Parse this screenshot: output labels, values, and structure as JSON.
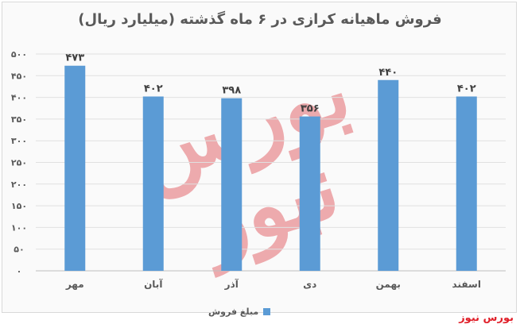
{
  "title": "فروش ماهیانه کرازی در ۶ ماه گذشته (میلیارد ریال)",
  "legend": {
    "label": "مبلغ فروش",
    "color": "#5b9bd5"
  },
  "footer": "بورس نیوز",
  "watermark_text": "بورس نیوز",
  "chart_data": {
    "type": "bar",
    "categories": [
      "مهر",
      "آبان",
      "آذر",
      "دی",
      "بهمن",
      "اسفند"
    ],
    "series": [
      {
        "name": "مبلغ فروش",
        "values": [
          473,
          402,
          398,
          356,
          440,
          402
        ]
      }
    ],
    "data_labels": [
      "۴۷۳",
      "۴۰۲",
      "۳۹۸",
      "۳۵۶",
      "۴۴۰",
      "۴۰۲"
    ],
    "y_ticks": [
      0,
      50,
      100,
      150,
      200,
      250,
      300,
      350,
      400,
      450,
      500
    ],
    "y_tick_labels": [
      "۰",
      "۵۰",
      "۱۰۰",
      "۱۵۰",
      "۲۰۰",
      "۲۵۰",
      "۳۰۰",
      "۳۵۰",
      "۴۰۰",
      "۴۵۰",
      "۵۰۰"
    ],
    "ylim": [
      0,
      500
    ],
    "grid": true,
    "legend_position": "bottom",
    "bar_color": "#5b9bd5"
  }
}
